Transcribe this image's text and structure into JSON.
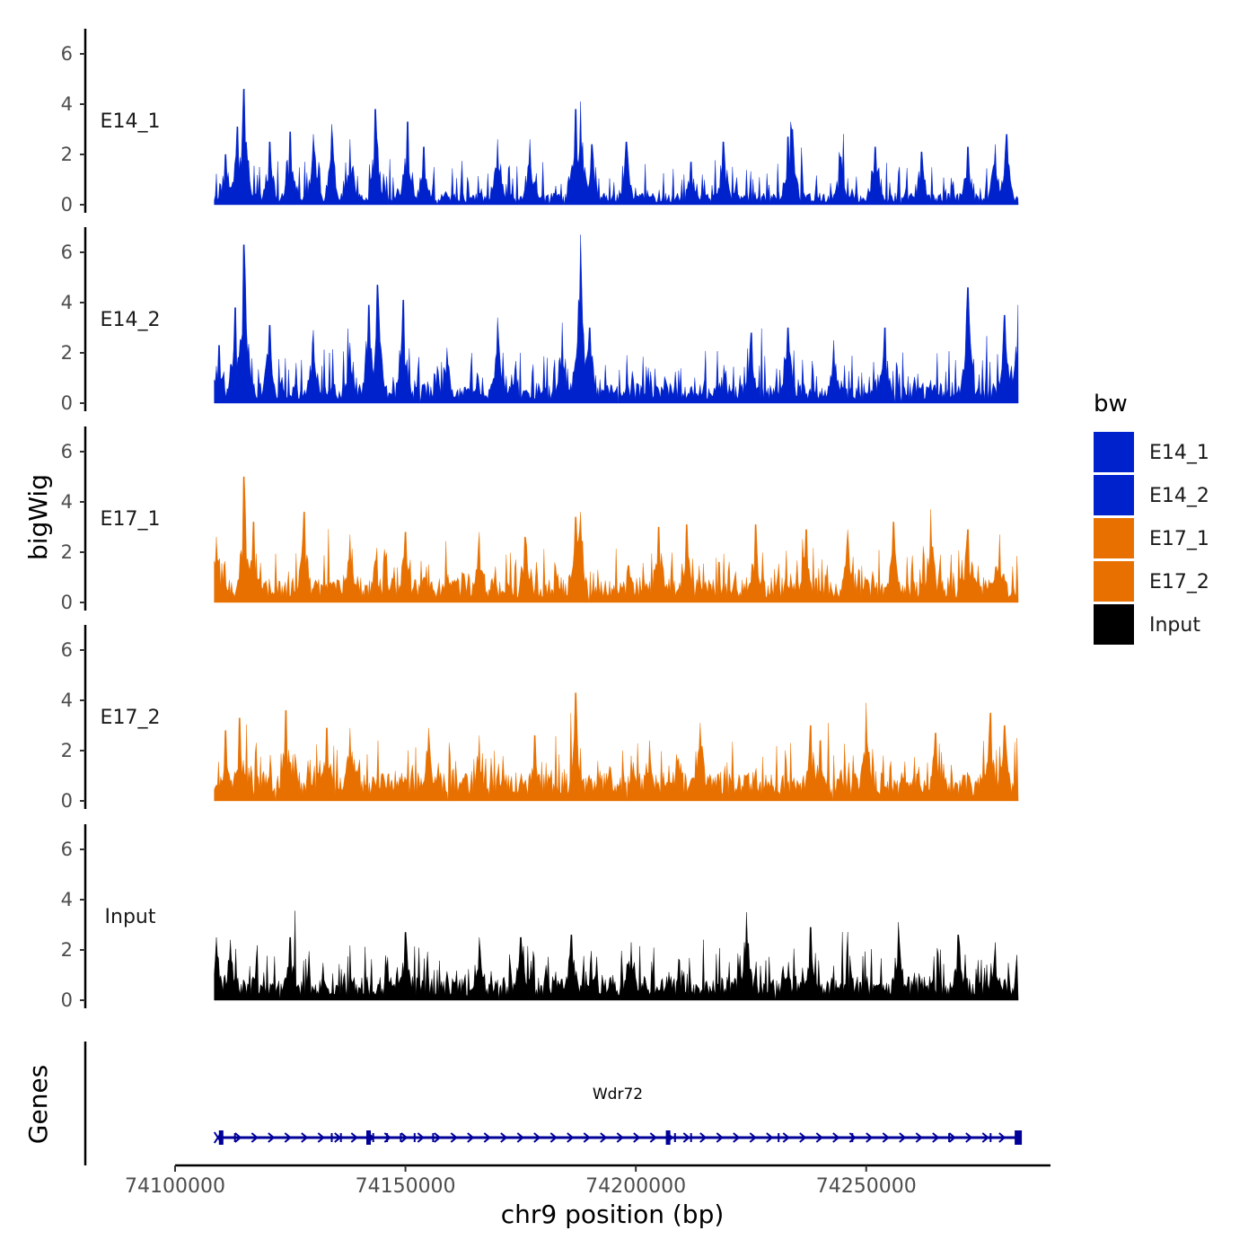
{
  "chart_data": {
    "type": "area",
    "y_axis_title": "bigWig",
    "x_axis_title": "chr9 position (bp)",
    "genes_axis_title": "Genes",
    "ylim": [
      0,
      7
    ],
    "y_ticks": [
      "0",
      "2",
      "4",
      "6"
    ],
    "x_range": [
      74100000,
      74290000
    ],
    "x_ticks": [
      {
        "value": 74100000,
        "label": "74100000"
      },
      {
        "value": 74150000,
        "label": "74150000"
      },
      {
        "value": 74200000,
        "label": "74200000"
      },
      {
        "value": 74250000,
        "label": "74250000"
      }
    ],
    "signal_range": [
      74108500,
      74283000
    ],
    "tracks": [
      {
        "name": "E14_1",
        "color": "#0022cc",
        "base": 0.35,
        "seed": 11,
        "peaks": [
          [
            74111000,
            2.0
          ],
          [
            74113500,
            3.1
          ],
          [
            74115000,
            4.6
          ],
          [
            74120500,
            2.5
          ],
          [
            74125000,
            2.9
          ],
          [
            74130000,
            2.8
          ],
          [
            74134000,
            3.2
          ],
          [
            74138000,
            2.6
          ],
          [
            74143500,
            3.8
          ],
          [
            74150500,
            3.3
          ],
          [
            74154000,
            2.3
          ],
          [
            74170000,
            2.6
          ],
          [
            74177000,
            2.6
          ],
          [
            74187000,
            3.8
          ],
          [
            74188000,
            4.1
          ],
          [
            74190500,
            2.4
          ],
          [
            74198000,
            2.5
          ],
          [
            74212000,
            1.7
          ],
          [
            74219000,
            2.5
          ],
          [
            74233000,
            2.7
          ],
          [
            74234000,
            3.0
          ],
          [
            74244500,
            1.9
          ],
          [
            74252000,
            2.3
          ],
          [
            74262000,
            2.1
          ],
          [
            74272000,
            2.3
          ],
          [
            74278000,
            2.4
          ],
          [
            74280500,
            2.8
          ]
        ]
      },
      {
        "name": "E14_2",
        "color": "#0022cc",
        "base": 0.6,
        "seed": 23,
        "peaks": [
          [
            74109500,
            2.3
          ],
          [
            74113000,
            3.8
          ],
          [
            74115000,
            6.3
          ],
          [
            74120500,
            3.1
          ],
          [
            74130000,
            2.9
          ],
          [
            74138000,
            2.4
          ],
          [
            74142000,
            3.9
          ],
          [
            74144000,
            4.7
          ],
          [
            74149500,
            4.1
          ],
          [
            74159000,
            2.2
          ],
          [
            74170000,
            3.4
          ],
          [
            74184000,
            3.2
          ],
          [
            74188000,
            6.7
          ],
          [
            74190000,
            3.0
          ],
          [
            74225000,
            2.8
          ],
          [
            74233000,
            3.0
          ],
          [
            74243000,
            2.5
          ],
          [
            74254000,
            3.0
          ],
          [
            74272000,
            4.6
          ],
          [
            74280000,
            3.5
          ],
          [
            74283000,
            3.9
          ]
        ]
      },
      {
        "name": "E17_1",
        "color": "#e87000",
        "base": 0.75,
        "seed": 37,
        "peaks": [
          [
            74109000,
            2.6
          ],
          [
            74115000,
            5.0
          ],
          [
            74117000,
            3.2
          ],
          [
            74128000,
            3.6
          ],
          [
            74138000,
            2.7
          ],
          [
            74150000,
            2.8
          ],
          [
            74166000,
            2.8
          ],
          [
            74176000,
            2.6
          ],
          [
            74187000,
            3.4
          ],
          [
            74188000,
            3.6
          ],
          [
            74205000,
            3.0
          ],
          [
            74211000,
            3.1
          ],
          [
            74226000,
            3.1
          ],
          [
            74237000,
            2.9
          ],
          [
            74246000,
            2.9
          ],
          [
            74256000,
            3.2
          ],
          [
            74264000,
            3.7
          ],
          [
            74272000,
            2.9
          ],
          [
            74279000,
            2.7
          ]
        ]
      },
      {
        "name": "E17_2",
        "color": "#e87000",
        "base": 0.85,
        "seed": 51,
        "peaks": [
          [
            74111000,
            2.8
          ],
          [
            74114000,
            3.3
          ],
          [
            74124000,
            3.6
          ],
          [
            74133000,
            2.9
          ],
          [
            74138000,
            2.9
          ],
          [
            74155000,
            2.9
          ],
          [
            74166000,
            2.6
          ],
          [
            74178000,
            2.6
          ],
          [
            74187000,
            4.3
          ],
          [
            74203000,
            2.4
          ],
          [
            74214000,
            3.1
          ],
          [
            74238000,
            3.0
          ],
          [
            74240000,
            2.4
          ],
          [
            74250000,
            3.9
          ],
          [
            74265000,
            2.7
          ],
          [
            74277000,
            3.5
          ],
          [
            74280000,
            3.0
          ]
        ]
      },
      {
        "name": "Input",
        "color": "#000000",
        "base": 0.7,
        "seed": 67,
        "peaks": [
          [
            74109000,
            2.5
          ],
          [
            74112000,
            2.4
          ],
          [
            74125000,
            2.5
          ],
          [
            74150000,
            2.7
          ],
          [
            74166000,
            2.5
          ],
          [
            74175000,
            2.5
          ],
          [
            74186000,
            2.6
          ],
          [
            74199000,
            2.3
          ],
          [
            74224000,
            3.5
          ],
          [
            74238000,
            2.9
          ],
          [
            74257000,
            3.1
          ],
          [
            74270000,
            2.6
          ],
          [
            74278000,
            2.3
          ]
        ]
      }
    ],
    "gene": {
      "name": "Wdr72",
      "start": 74109500,
      "end": 74283500,
      "color": "#000099",
      "exons": [
        74110000,
        74113000,
        74134000,
        74136000,
        74142000,
        74143000,
        74146000,
        74149000,
        74152000,
        74156000,
        74207000,
        74208500,
        74212000,
        74231000,
        74247000,
        74268000,
        74277000,
        74283000
      ]
    },
    "legend": {
      "title": "bw",
      "entries": [
        {
          "label": "E14_1",
          "color": "#0022cc"
        },
        {
          "label": "E14_2",
          "color": "#0022cc"
        },
        {
          "label": "E17_1",
          "color": "#e87000"
        },
        {
          "label": "E17_2",
          "color": "#e87000"
        },
        {
          "label": "Input",
          "color": "#000000"
        }
      ]
    }
  }
}
